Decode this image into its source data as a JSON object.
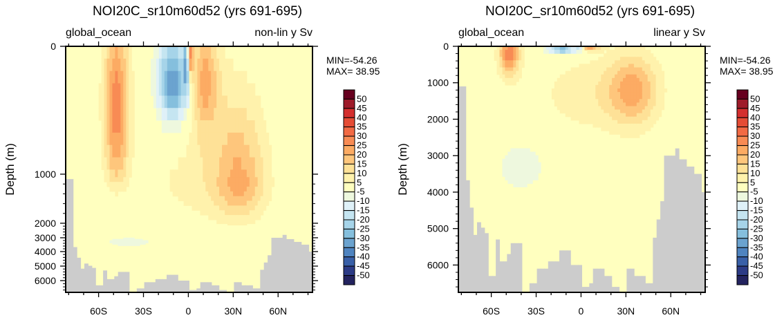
{
  "chart_data": [
    {
      "type": "heatmap",
      "subtype": "filled-contour",
      "title": "NOI20C_sr10m60d52 (yrs 691-695)",
      "left_label": "global_ocean",
      "right_label": "non-lin y Sv",
      "xlabel": "",
      "ylabel": "Depth (m)",
      "y_scale": "non-linear",
      "x_ticks": [
        "60S",
        "30S",
        "0",
        "30N",
        "60N"
      ],
      "x_tick_values": [
        -60,
        -30,
        0,
        30,
        60
      ],
      "xlim": [
        -82,
        83
      ],
      "y_ticks": [
        "0",
        "1000",
        "2000",
        "3000",
        "4000",
        "5000",
        "6000"
      ],
      "y_tick_values": [
        0,
        1000,
        2000,
        3000,
        4000,
        5000,
        6000
      ],
      "ylim": [
        0,
        6750
      ],
      "min_text": "MIN=-54.26",
      "max_text": "MAX= 38.95",
      "features": [
        {
          "name": "southern-ocean-positive-cell",
          "lat": -48,
          "depth": 400,
          "value": 30
        },
        {
          "name": "tropical-negative-cell",
          "lat": -10,
          "depth": 250,
          "value": -40
        },
        {
          "name": "equatorial-negative-peak",
          "lat": -1,
          "depth": 100,
          "value": -50
        },
        {
          "name": "equatorial-positive-peak",
          "lat": 1,
          "depth": 50,
          "value": 38
        },
        {
          "name": "northern-subtropical-positive",
          "lat": 10,
          "depth": 250,
          "value": 25
        },
        {
          "name": "nadw-positive-cell",
          "lat": 35,
          "depth": 1200,
          "value": 25
        },
        {
          "name": "aabw-weak-negative",
          "lat": -40,
          "depth": 3500,
          "value": -10
        }
      ]
    },
    {
      "type": "heatmap",
      "subtype": "filled-contour",
      "title": "NOI20C_sr10m60d52 (yrs 691-695)",
      "left_label": "global_ocean",
      "right_label": "linear y Sv",
      "xlabel": "",
      "ylabel": "Depth (m)",
      "y_scale": "linear",
      "x_ticks": [
        "60S",
        "30S",
        "0",
        "30N",
        "60N"
      ],
      "x_tick_values": [
        -60,
        -30,
        0,
        30,
        60
      ],
      "xlim": [
        -82,
        83
      ],
      "y_ticks": [
        "0",
        "1000",
        "2000",
        "3000",
        "4000",
        "5000",
        "6000"
      ],
      "y_tick_values": [
        0,
        1000,
        2000,
        3000,
        4000,
        5000,
        6000
      ],
      "ylim": [
        0,
        6750
      ],
      "min_text": "MIN=-54.26",
      "max_text": "MAX= 38.95",
      "features": [
        {
          "name": "southern-ocean-positive-cell",
          "lat": -48,
          "depth": 300,
          "value": 30
        },
        {
          "name": "tropical-negative-cell",
          "lat": -10,
          "depth": 100,
          "value": -40
        },
        {
          "name": "nadw-positive-cell",
          "lat": 35,
          "depth": 1200,
          "value": 25
        },
        {
          "name": "aabw-weak-negative",
          "lat": -40,
          "depth": 3300,
          "value": -10
        }
      ]
    }
  ],
  "colorbar": {
    "labels": [
      "50",
      "45",
      "40",
      "35",
      "30",
      "25",
      "20",
      "15",
      "10",
      "5",
      "-5",
      "-10",
      "-15",
      "-20",
      "-25",
      "-30",
      "-35",
      "-40",
      "-45",
      "-50"
    ],
    "colors": [
      "#67001f",
      "#9e1b2a",
      "#d42f2e",
      "#e54c35",
      "#f26a44",
      "#f88b54",
      "#fcab63",
      "#fec67c",
      "#fee197",
      "#fff2ac",
      "#ffffbf",
      "#eef8de",
      "#dff1f8",
      "#c5e5f1",
      "#a6d4e9",
      "#85bfdd",
      "#6ba3cf",
      "#4f84c0",
      "#3960a8",
      "#2c3b86",
      "#23235f"
    ]
  },
  "land_color": "#cccccc"
}
